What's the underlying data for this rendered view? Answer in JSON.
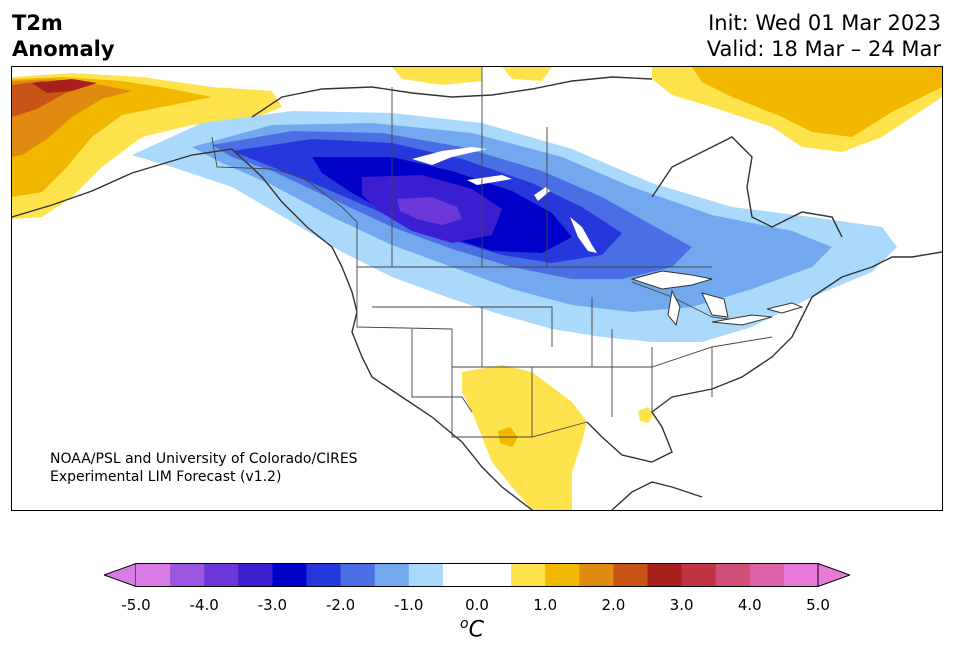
{
  "header": {
    "variable": "T2m",
    "subtitle": "Anomaly",
    "init": "Init: Wed 01 Mar 2023",
    "valid": "Valid: 18 Mar – 24 Mar"
  },
  "map": {
    "credit_line1": "NOAA/PSL and University of Colorado/CIRES",
    "credit_line2": "Experimental LIM Forecast (v1.2)",
    "region": "North America"
  },
  "colorbar": {
    "ticks": [
      "-5.0",
      "-4.0",
      "-3.0",
      "-2.0",
      "-1.0",
      "0.0",
      "1.0",
      "2.0",
      "3.0",
      "4.0",
      "5.0"
    ],
    "unit_symbol": "o",
    "unit_letter": "C",
    "colors": [
      "#da7ce6",
      "#9d56e1",
      "#6b37d9",
      "#3b1ed0",
      "#0000c8",
      "#2638dc",
      "#4a6fe4",
      "#72a9ee",
      "#abd9fb",
      "#ffffff",
      "#ffffff",
      "#ffe34d",
      "#f2b800",
      "#e08a10",
      "#c85516",
      "#a8201c",
      "#c03444",
      "#cf4f78",
      "#dc62a8",
      "#e879d8"
    ],
    "extend_low": "#da7ce6",
    "extend_high": "#e879d8"
  }
}
